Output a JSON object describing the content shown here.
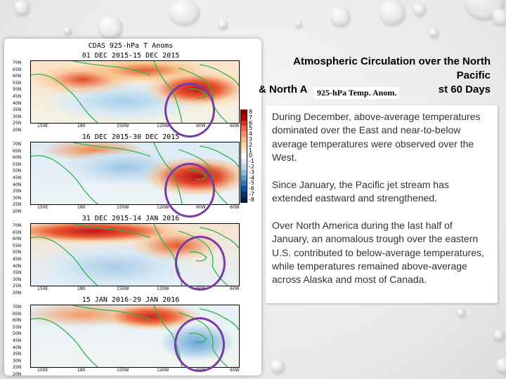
{
  "slide": {
    "title_line1": "Atmospheric Circulation over the North",
    "title_line2": "Pacific",
    "title_line3_left": "& North A",
    "title_line3_right": "st 60 Days",
    "overlay_tag": "925-hPa Temp. Anom.",
    "paragraphs": [
      "During December, above-average temperatures dominated over the East and near-to-below average temperatures were observed over the West.",
      "Since January, the Pacific jet stream has extended eastward and strengthened.",
      "Over North America during the last half of January, an anomalous trough over the eastern U.S. contributed to below-average temperatures, while temperatures remained above-average across Alaska and most of Canada."
    ]
  },
  "maps": {
    "header": "CDAS 925-hPa T Anoms",
    "periods": [
      "01 DEC 2015-15 DEC 2015",
      "16 DEC 2015-30 DEC 2015",
      "31 DEC 2015-14 JAN 2016",
      "15 JAN 2016-29 JAN 2016"
    ],
    "lat_labels": [
      "70N",
      "65N",
      "60N",
      "55N",
      "50N",
      "45N",
      "40N",
      "35N",
      "30N",
      "25N",
      "20N"
    ],
    "lon_labels": [
      "150E",
      "180",
      "150W",
      "120W",
      "90W",
      "60W"
    ],
    "colorbar_labels": [
      "8",
      "7",
      "6",
      "5",
      "4",
      "3",
      "2",
      "1",
      "0",
      "-1",
      "-2",
      "-3",
      "-4",
      "-5",
      "-6",
      "-7",
      "-8"
    ],
    "colorbar_colors": [
      "#8b0000",
      "#b30000",
      "#d7301f",
      "#ef6548",
      "#fc8d59",
      "#fdbb84",
      "#fdd49e",
      "#fee8c8",
      "#ffffff",
      "#dbe9f6",
      "#bad6eb",
      "#89bedc",
      "#539ecd",
      "#2b7bba",
      "#0b559f",
      "#08306b",
      "#041a3f"
    ]
  }
}
